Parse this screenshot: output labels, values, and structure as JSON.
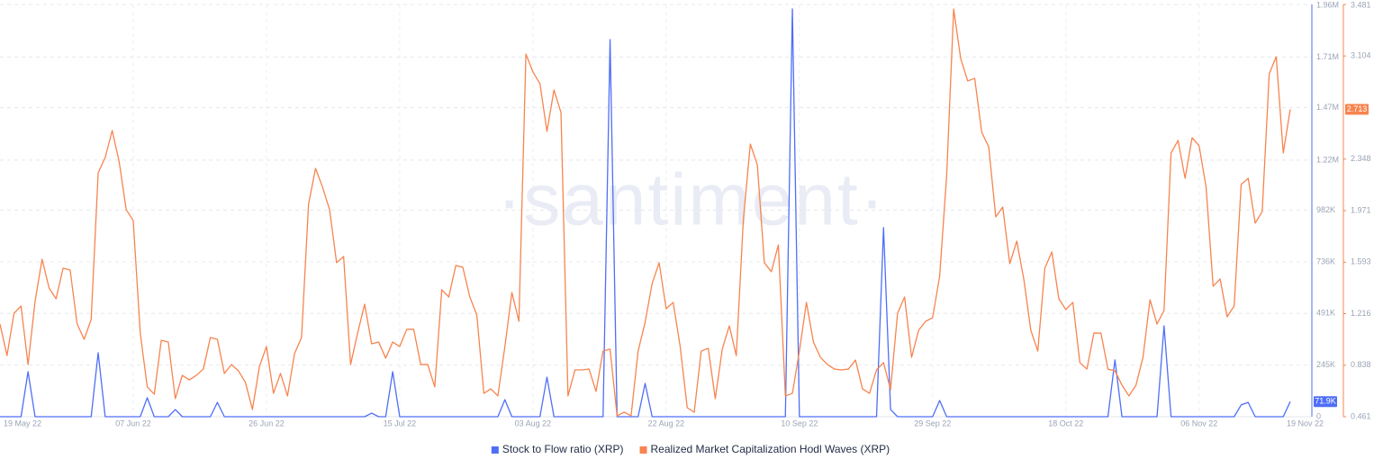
{
  "chart_data": {
    "type": "line",
    "watermark": "·santiment·",
    "categories": [
      "19 May 22",
      null,
      null,
      null,
      null,
      null,
      null,
      null,
      null,
      null,
      null,
      null,
      null,
      null,
      null,
      null,
      null,
      null,
      null,
      "07 Jun 22",
      null,
      null,
      null,
      null,
      null,
      null,
      null,
      null,
      null,
      null,
      null,
      null,
      null,
      null,
      null,
      null,
      null,
      null,
      "26 Jun 22",
      null,
      null,
      null,
      null,
      null,
      null,
      null,
      null,
      null,
      null,
      null,
      null,
      null,
      null,
      null,
      null,
      null,
      null,
      "15 Jul 22",
      null,
      null,
      null,
      null,
      null,
      null,
      null,
      null,
      null,
      null,
      null,
      null,
      null,
      null,
      null,
      null,
      null,
      null,
      "03 Aug 22",
      null,
      null,
      null,
      null,
      null,
      null,
      null,
      null,
      null,
      null,
      null,
      null,
      null,
      null,
      null,
      null,
      null,
      null,
      "22 Aug 22",
      null,
      null,
      null,
      null,
      null,
      null,
      null,
      null,
      null,
      null,
      null,
      null,
      null,
      null,
      null,
      null,
      null,
      null,
      "10 Sep 22",
      null,
      null,
      null,
      null,
      null,
      null,
      null,
      null,
      null,
      null,
      null,
      null,
      null,
      null,
      null,
      null,
      null,
      null,
      "29 Sep 22",
      null,
      null,
      null,
      null,
      null,
      null,
      null,
      null,
      null,
      null,
      null,
      null,
      null,
      null,
      null,
      null,
      null,
      null,
      "18 Oct 22",
      null,
      null,
      null,
      null,
      null,
      null,
      null,
      null,
      null,
      null,
      null,
      null,
      null,
      null,
      null,
      null,
      null,
      null,
      "06 Nov 22",
      null,
      null,
      null,
      null,
      null,
      null,
      null,
      null,
      null,
      null,
      null,
      null,
      "19 Nov 22"
    ],
    "series": [
      {
        "name": "Stock to Flow ratio (XRP)",
        "color": "#4f6ef7",
        "axis": "y",
        "last_label": "71.9K",
        "values": [
          0,
          0,
          0,
          0,
          214000,
          0,
          0,
          0,
          0,
          0,
          0,
          0,
          0,
          0,
          304000,
          0,
          0,
          0,
          0,
          0,
          0,
          90000,
          0,
          0,
          0,
          34000,
          0,
          0,
          0,
          0,
          0,
          68000,
          0,
          0,
          0,
          0,
          0,
          0,
          0,
          0,
          0,
          0,
          0,
          0,
          0,
          0,
          0,
          0,
          0,
          0,
          0,
          0,
          0,
          17000,
          0,
          0,
          214000,
          0,
          0,
          0,
          0,
          0,
          0,
          0,
          0,
          0,
          0,
          0,
          0,
          0,
          0,
          0,
          81000,
          0,
          0,
          0,
          0,
          0,
          188000,
          0,
          0,
          0,
          0,
          0,
          0,
          0,
          0,
          1793000,
          0,
          0,
          0,
          0,
          158000,
          0,
          0,
          0,
          0,
          0,
          0,
          0,
          0,
          0,
          0,
          0,
          0,
          0,
          0,
          0,
          0,
          0,
          0,
          0,
          0,
          1939000,
          0,
          0,
          0,
          0,
          0,
          0,
          0,
          0,
          0,
          0,
          0,
          0,
          899000,
          34000,
          0,
          0,
          0,
          0,
          0,
          0,
          77000,
          0,
          0,
          0,
          0,
          0,
          0,
          0,
          0,
          0,
          0,
          0,
          0,
          0,
          0,
          0,
          0,
          0,
          0,
          0,
          0,
          0,
          0,
          0,
          0,
          270000,
          0,
          0,
          0,
          0,
          0,
          0,
          432000,
          0,
          0,
          0,
          0,
          0,
          0,
          0,
          0,
          0,
          0,
          56000,
          68000,
          0,
          0,
          0,
          0,
          0,
          71900
        ]
      },
      {
        "name": "Realized Market Capitalization Hodl Waves (XRP)",
        "color": "#f7844f",
        "axis": "y2",
        "last_label": "2.713",
        "values": [
          1.14,
          0.909,
          1.219,
          1.272,
          0.843,
          1.305,
          1.615,
          1.404,
          1.325,
          1.549,
          1.536,
          1.14,
          1.028,
          1.173,
          2.248,
          2.36,
          2.558,
          2.327,
          1.978,
          1.898,
          1.074,
          0.679,
          0.626,
          1.021,
          1.008,
          0.593,
          0.764,
          0.731,
          0.764,
          0.81,
          1.041,
          1.028,
          0.778,
          0.843,
          0.797,
          0.712,
          0.514,
          0.83,
          0.975,
          0.632,
          0.778,
          0.613,
          0.923,
          1.041,
          2.017,
          2.281,
          2.142,
          1.978,
          1.589,
          1.635,
          0.843,
          1.074,
          1.285,
          0.995,
          1.008,
          0.89,
          1.008,
          0.975,
          1.101,
          1.101,
          0.843,
          0.843,
          0.679,
          1.391,
          1.338,
          1.569,
          1.556,
          1.338,
          1.206,
          0.632,
          0.665,
          0.613,
          0.975,
          1.371,
          1.16,
          3.118,
          2.987,
          2.901,
          2.551,
          2.855,
          2.69,
          0.613,
          0.804,
          0.804,
          0.81,
          0.646,
          0.942,
          0.956,
          0.468,
          0.494,
          0.468,
          0.942,
          1.153,
          1.437,
          1.589,
          1.252,
          1.298,
          0.975,
          0.527,
          0.494,
          0.942,
          0.962,
          0.593,
          0.956,
          1.127,
          0.909,
          1.898,
          2.459,
          2.307,
          1.589,
          1.523,
          1.72,
          0.613,
          0.632,
          0.942,
          1.298,
          1.008,
          0.896,
          0.843,
          0.81,
          0.804,
          0.81,
          0.876,
          0.665,
          0.632,
          0.804,
          0.857,
          0.659,
          1.219,
          1.338,
          0.896,
          1.094,
          1.16,
          1.186,
          1.49,
          2.228,
          3.448,
          3.085,
          2.921,
          2.94,
          2.545,
          2.439,
          1.925,
          1.997,
          1.582,
          1.747,
          1.47,
          1.094,
          0.942,
          1.549,
          1.668,
          1.325,
          1.246,
          1.298,
          0.857,
          0.81,
          1.074,
          1.074,
          0.81,
          0.797,
          0.692,
          0.613,
          0.692,
          0.896,
          1.318,
          1.14,
          1.239,
          2.393,
          2.485,
          2.208,
          2.505,
          2.446,
          2.142,
          1.417,
          1.47,
          1.193,
          1.272,
          2.162,
          2.208,
          1.879,
          1.964,
          2.973,
          3.099,
          2.393,
          2.713
        ]
      }
    ],
    "ylim": [
      0,
      1960000
    ],
    "yticks": [
      0,
      {
        "value": 245000,
        "label": "245K"
      },
      {
        "value": 491000,
        "label": "491K"
      },
      {
        "value": 736000,
        "label": "736K"
      },
      {
        "value": 982000,
        "label": "982K"
      },
      {
        "value": 1220000,
        "label": "1.22M"
      },
      {
        "value": 1470000,
        "label": "1.47M"
      },
      {
        "value": 1710000,
        "label": "1.71M"
      },
      {
        "value": 1960000,
        "label": "1.96M"
      }
    ],
    "y2lim": [
      0.461,
      3.481
    ],
    "y2ticks": [
      0.461,
      0.838,
      1.216,
      1.593,
      1.971,
      2.348,
      3.104,
      3.481
    ],
    "grid": true,
    "legend": "bottom"
  }
}
